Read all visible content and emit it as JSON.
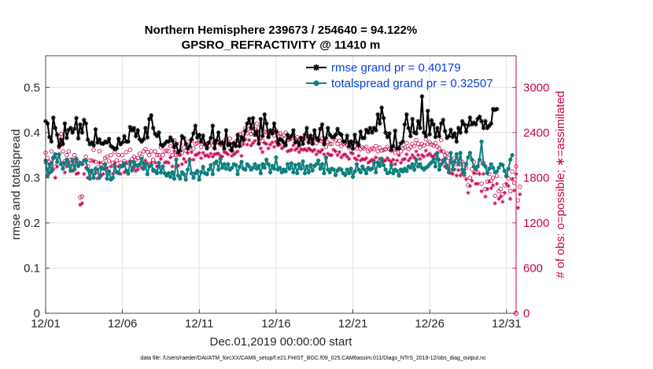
{
  "chart_data": {
    "type": "line",
    "title_line1": "Northern Hemisphere 239673 / 254640 = 94.122%",
    "title_line2": "GPSRO_REFRACTIVITY @ 11410 m",
    "xlabel": "Dec.01,2019 00:00:00 start",
    "ylabel_left": "rmse and totalspread",
    "ylabel_right": "# of obs: o=possible; ∗=assimilated",
    "footnote": "data file: /Users/raeder/DAI/ATM_forcXX/CAM6_setup/f.e21.FHIST_BGC.f09_025.CAM6assim.011/Diags_NTrS_2019-12/obs_diag_output.nc",
    "x_ticks": [
      "12/01",
      "12/06",
      "12/11",
      "12/16",
      "12/21",
      "12/26",
      "12/31"
    ],
    "x_tick_days": [
      1,
      6,
      11,
      16,
      21,
      26,
      31
    ],
    "xlim": [
      1,
      31.625
    ],
    "y_left_ticks": [
      "0",
      "0.1",
      "0.2",
      "0.3",
      "0.4",
      "0.5"
    ],
    "ylim_left": [
      0,
      0.57
    ],
    "y_right_ticks": [
      "0",
      "600",
      "1200",
      "1800",
      "2400",
      "3000"
    ],
    "ylim_right": [
      0,
      3420
    ],
    "colors": {
      "rmse": "#000000",
      "spread": "#0f7f7f",
      "obs": "#c8004f",
      "legend_text": "#0a42d8"
    },
    "series": [
      {
        "name": "rmse grand pr = 0.40179",
        "axis": "left",
        "values": [
          0.425,
          0.42,
          0.39,
          0.38,
          0.433,
          0.41,
          0.395,
          0.37,
          0.384,
          0.375,
          0.42,
          0.388,
          0.406,
          0.41,
          0.4,
          0.408,
          0.432,
          0.387,
          0.418,
          0.4,
          0.428,
          0.42,
          0.384,
          0.374,
          0.378,
          0.372,
          0.407,
          0.378,
          0.385,
          0.376,
          0.375,
          0.38,
          0.378,
          0.386,
          0.37,
          0.367,
          0.363,
          0.365,
          0.386,
          0.374,
          0.378,
          0.392,
          0.38,
          0.38,
          0.412,
          0.405,
          0.41,
          0.392,
          0.405,
          0.385,
          0.38,
          0.385,
          0.41,
          0.389,
          0.43,
          0.438,
          0.41,
          0.397,
          0.392,
          0.4,
          0.373,
          0.37,
          0.375,
          0.38,
          0.38,
          0.389,
          0.382,
          0.367,
          0.375,
          0.356,
          0.36,
          0.392,
          0.388,
          0.375,
          0.364,
          0.37,
          0.385,
          0.398,
          0.415,
          0.389,
          0.395,
          0.38,
          0.393,
          0.375,
          0.365,
          0.378,
          0.388,
          0.415,
          0.365,
          0.383,
          0.4,
          0.376,
          0.378,
          0.364,
          0.405,
          0.372,
          0.375,
          0.36,
          0.376,
          0.37,
          0.395,
          0.37,
          0.39,
          0.383,
          0.403,
          0.42,
          0.43,
          0.41,
          0.432,
          0.395,
          0.402,
          0.375,
          0.43,
          0.392,
          0.44,
          0.42,
          0.39,
          0.405,
          0.398,
          0.42,
          0.402,
          0.376,
          0.386,
          0.383,
          0.378,
          0.372,
          0.395,
          0.388,
          0.392,
          0.405,
          0.378,
          0.38,
          0.372,
          0.388,
          0.375,
          0.395,
          0.41,
          0.378,
          0.393,
          0.375,
          0.405,
          0.388,
          0.383,
          0.408,
          0.418,
          0.374,
          0.388,
          0.41,
          0.395,
          0.39,
          0.39,
          0.395,
          0.408,
          0.398,
          0.395,
          0.38,
          0.38,
          0.393,
          0.37,
          0.38,
          0.364,
          0.395,
          0.378,
          0.372,
          0.402,
          0.388,
          0.388,
          0.406,
          0.4,
          0.41,
          0.4,
          0.41,
          0.405,
          0.44,
          0.42,
          0.455,
          0.432,
          0.4,
          0.39,
          0.398,
          0.362,
          0.37,
          0.404,
          0.365,
          0.365,
          0.376,
          0.38,
          0.418,
          0.44,
          0.41,
          0.392,
          0.43,
          0.4,
          0.398,
          0.425,
          0.41,
          0.48,
          0.4,
          0.392,
          0.448,
          0.396,
          0.427,
          0.418,
          0.39,
          0.41,
          0.392,
          0.42,
          0.428,
          0.403,
          0.388,
          0.392,
          0.406,
          0.39,
          0.398,
          0.38,
          0.41,
          0.4,
          0.425,
          0.418,
          0.402,
          0.416,
          0.433,
          0.418,
          0.422,
          0.418,
          0.43,
          0.435,
          0.425,
          0.41,
          0.425,
          0.41,
          0.415,
          0.42,
          0.452,
          0.45,
          0.452
        ]
      },
      {
        "name": "totalspread grand pr = 0.32507",
        "axis": "left",
        "values": [
          0.338,
          0.305,
          0.33,
          0.314,
          0.345,
          0.352,
          0.335,
          0.352,
          0.33,
          0.32,
          0.332,
          0.34,
          0.328,
          0.316,
          0.338,
          0.318,
          0.342,
          0.326,
          0.333,
          0.33,
          0.338,
          0.338,
          0.318,
          0.298,
          0.316,
          0.3,
          0.32,
          0.318,
          0.3,
          0.322,
          0.32,
          0.33,
          0.298,
          0.314,
          0.296,
          0.3,
          0.325,
          0.312,
          0.31,
          0.325,
          0.326,
          0.332,
          0.316,
          0.31,
          0.334,
          0.316,
          0.335,
          0.328,
          0.326,
          0.33,
          0.342,
          0.32,
          0.33,
          0.308,
          0.325,
          0.328,
          0.318,
          0.315,
          0.31,
          0.333,
          0.312,
          0.325,
          0.31,
          0.305,
          0.31,
          0.302,
          0.312,
          0.298,
          0.34,
          0.305,
          0.298,
          0.312,
          0.308,
          0.296,
          0.318,
          0.338,
          0.31,
          0.3,
          0.31,
          0.315,
          0.296,
          0.312,
          0.324,
          0.31,
          0.308,
          0.318,
          0.328,
          0.308,
          0.332,
          0.336,
          0.318,
          0.342,
          0.322,
          0.33,
          0.32,
          0.33,
          0.318,
          0.322,
          0.33,
          0.328,
          0.308,
          0.324,
          0.335,
          0.32,
          0.318,
          0.33,
          0.325,
          0.318,
          0.322,
          0.33,
          0.32,
          0.326,
          0.31,
          0.33,
          0.322,
          0.34,
          0.33,
          0.312,
          0.326,
          0.32,
          0.345,
          0.318,
          0.322,
          0.312,
          0.318,
          0.314,
          0.33,
          0.32,
          0.332,
          0.312,
          0.328,
          0.31,
          0.33,
          0.32,
          0.336,
          0.31,
          0.325,
          0.312,
          0.328,
          0.316,
          0.326,
          0.33,
          0.338,
          0.32,
          0.33,
          0.31,
          0.345,
          0.318,
          0.312,
          0.32,
          0.318,
          0.306,
          0.316,
          0.32,
          0.318,
          0.31,
          0.306,
          0.318,
          0.31,
          0.32,
          0.302,
          0.314,
          0.33,
          0.318,
          0.312,
          0.325,
          0.318,
          0.31,
          0.322,
          0.318,
          0.32,
          0.333,
          0.312,
          0.334,
          0.326,
          0.342,
          0.328,
          0.318,
          0.31,
          0.312,
          0.328,
          0.31,
          0.318,
          0.315,
          0.305,
          0.318,
          0.314,
          0.32,
          0.315,
          0.325,
          0.322,
          0.33,
          0.318,
          0.34,
          0.325,
          0.33,
          0.322,
          0.318,
          0.322,
          0.325,
          0.33,
          0.334,
          0.342,
          0.325,
          0.355,
          0.318,
          0.33,
          0.338,
          0.342,
          0.322,
          0.312,
          0.355,
          0.318,
          0.335,
          0.352,
          0.33,
          0.355,
          0.318,
          0.31,
          0.33,
          0.345,
          0.355,
          0.34,
          0.325,
          0.32,
          0.325,
          0.34,
          0.38,
          0.33,
          0.325,
          0.31,
          0.32,
          0.33,
          0.322,
          0.312,
          0.314,
          0.322,
          0.33,
          0.328,
          0.315,
          0.305,
          0.32,
          0.34,
          0.35
        ]
      },
      {
        "name": "possible",
        "axis": "right",
        "values": [
          2130,
          2060,
          2010,
          2150,
          2060,
          1950,
          2100,
          2350,
          2380,
          2150,
          2020,
          2100,
          2150,
          2040,
          2040,
          2100,
          2000,
          2010,
          1540,
          1550,
          2000,
          2080,
          1950,
          2030,
          2030,
          2170,
          2010,
          1940,
          2150,
          1980,
          2000,
          2060,
          2080,
          2020,
          2100,
          2000,
          2140,
          2030,
          2100,
          2000,
          2100,
          2020,
          2140,
          2000,
          2170,
          2050,
          2080,
          2040,
          2060,
          2120,
          2080,
          2150,
          2180,
          2140,
          2100,
          2150,
          2040,
          2150,
          2100,
          2100,
          2200,
          2100,
          2150,
          2160,
          2150,
          2220,
          2100,
          2300,
          2100,
          2110,
          2250,
          2130,
          2200,
          2160,
          2280,
          2200,
          2290,
          2190,
          2250,
          2260,
          2280,
          2210,
          2280,
          2240,
          2250,
          2230,
          2270,
          2230,
          2260,
          2270,
          2270,
          2240,
          2230,
          2290,
          2280,
          2260,
          2320,
          2240,
          2260,
          2280,
          2300,
          2380,
          2240,
          2400,
          2460,
          2390,
          2450,
          2380,
          2410,
          2440,
          2520,
          2460,
          2340,
          2290,
          2410,
          2400,
          2340,
          2390,
          2420,
          2360,
          2430,
          2380,
          2390,
          2340,
          2360,
          2400,
          2300,
          2310,
          2320,
          2380,
          2320,
          2340,
          2290,
          2330,
          2320,
          2330,
          2310,
          2340,
          2320,
          2300,
          2320,
          2260,
          2300,
          2290,
          2320,
          2260,
          2210,
          2270,
          2250,
          2250,
          2320,
          2300,
          2250,
          2290,
          2220,
          2250,
          2260,
          2230,
          2200,
          2280,
          2270,
          2210,
          2190,
          2240,
          2180,
          2200,
          2190,
          2210,
          2150,
          2170,
          2190,
          2180,
          2220,
          2150,
          2200,
          2160,
          2170,
          2180,
          2210,
          2180,
          2160,
          2190,
          2130,
          2180,
          2250,
          2150,
          2190,
          2200,
          2260,
          2180,
          2210,
          2250,
          2220,
          2300,
          2250,
          2200,
          2250,
          2230,
          2310,
          2250,
          2270,
          2240,
          2230,
          2260,
          2210,
          2190,
          2300,
          2150,
          2100,
          2120,
          2060,
          2010,
          2000,
          2060,
          1980,
          2050,
          1980,
          2010,
          1980,
          1930,
          1700,
          1800,
          1910,
          2010,
          1870,
          1870,
          2000,
          1720,
          2000,
          1650,
          1750,
          1850,
          1760,
          1800,
          1560,
          1820,
          1620,
          1650,
          1580,
          1700,
          1820,
          1790,
          1620,
          1880,
          1730,
          1950,
          1500,
          1680
        ]
      },
      {
        "name": "assimilated",
        "axis": "right",
        "values": [
          2000,
          1910,
          1860,
          2000,
          1910,
          1800,
          1950,
          2200,
          2230,
          2000,
          1870,
          1950,
          2000,
          1890,
          1890,
          1950,
          1850,
          1860,
          1440,
          1460,
          1850,
          1930,
          1800,
          1880,
          1880,
          2020,
          1860,
          1790,
          2000,
          1830,
          1850,
          1910,
          1930,
          1870,
          1950,
          1850,
          1990,
          1880,
          1950,
          1850,
          1950,
          1870,
          1990,
          1850,
          2020,
          1900,
          1930,
          1890,
          1910,
          1970,
          1930,
          2000,
          2030,
          1990,
          1950,
          2000,
          1890,
          2000,
          1950,
          1950,
          2050,
          1950,
          2000,
          2010,
          2000,
          2070,
          1950,
          2150,
          1950,
          1960,
          2100,
          1980,
          2050,
          2010,
          2130,
          2050,
          2140,
          2040,
          2100,
          2110,
          2130,
          2060,
          2130,
          2090,
          2100,
          2080,
          2120,
          2080,
          2110,
          2120,
          2120,
          2090,
          2080,
          2140,
          2130,
          2110,
          2170,
          2090,
          2110,
          2130,
          2150,
          2230,
          2090,
          2250,
          2310,
          2240,
          2300,
          2230,
          2260,
          2290,
          2370,
          2310,
          2190,
          2140,
          2260,
          2250,
          2190,
          2240,
          2270,
          2210,
          2280,
          2230,
          2240,
          2190,
          2210,
          2250,
          2150,
          2160,
          2170,
          2230,
          2170,
          2190,
          2140,
          2180,
          2170,
          2180,
          2160,
          2190,
          2170,
          2150,
          2170,
          2110,
          2150,
          2140,
          2170,
          2110,
          2060,
          2120,
          2100,
          2100,
          2170,
          2150,
          2100,
          2140,
          2070,
          2100,
          2110,
          2080,
          2050,
          2130,
          2120,
          2060,
          2040,
          2090,
          2030,
          2050,
          2040,
          2060,
          2000,
          2020,
          2040,
          2030,
          2070,
          2000,
          2050,
          2010,
          2020,
          2030,
          2060,
          2030,
          2010,
          2040,
          1980,
          2030,
          2100,
          2000,
          2040,
          2050,
          2110,
          2030,
          2060,
          2100,
          2070,
          2150,
          2100,
          2050,
          2100,
          2080,
          2160,
          2100,
          2120,
          2090,
          2080,
          2110,
          2060,
          2040,
          2150,
          2000,
          1950,
          1970,
          1910,
          1860,
          1850,
          1910,
          1830,
          1900,
          1830,
          1860,
          1830,
          1780,
          1600,
          1690,
          1760,
          1860,
          1720,
          1720,
          1850,
          1620,
          1850,
          1550,
          1650,
          1750,
          1660,
          1700,
          1460,
          1720,
          1520,
          1550,
          1480,
          1600,
          1720,
          1690,
          1520,
          1780,
          1630,
          1850,
          1400,
          1580
        ]
      }
    ]
  }
}
